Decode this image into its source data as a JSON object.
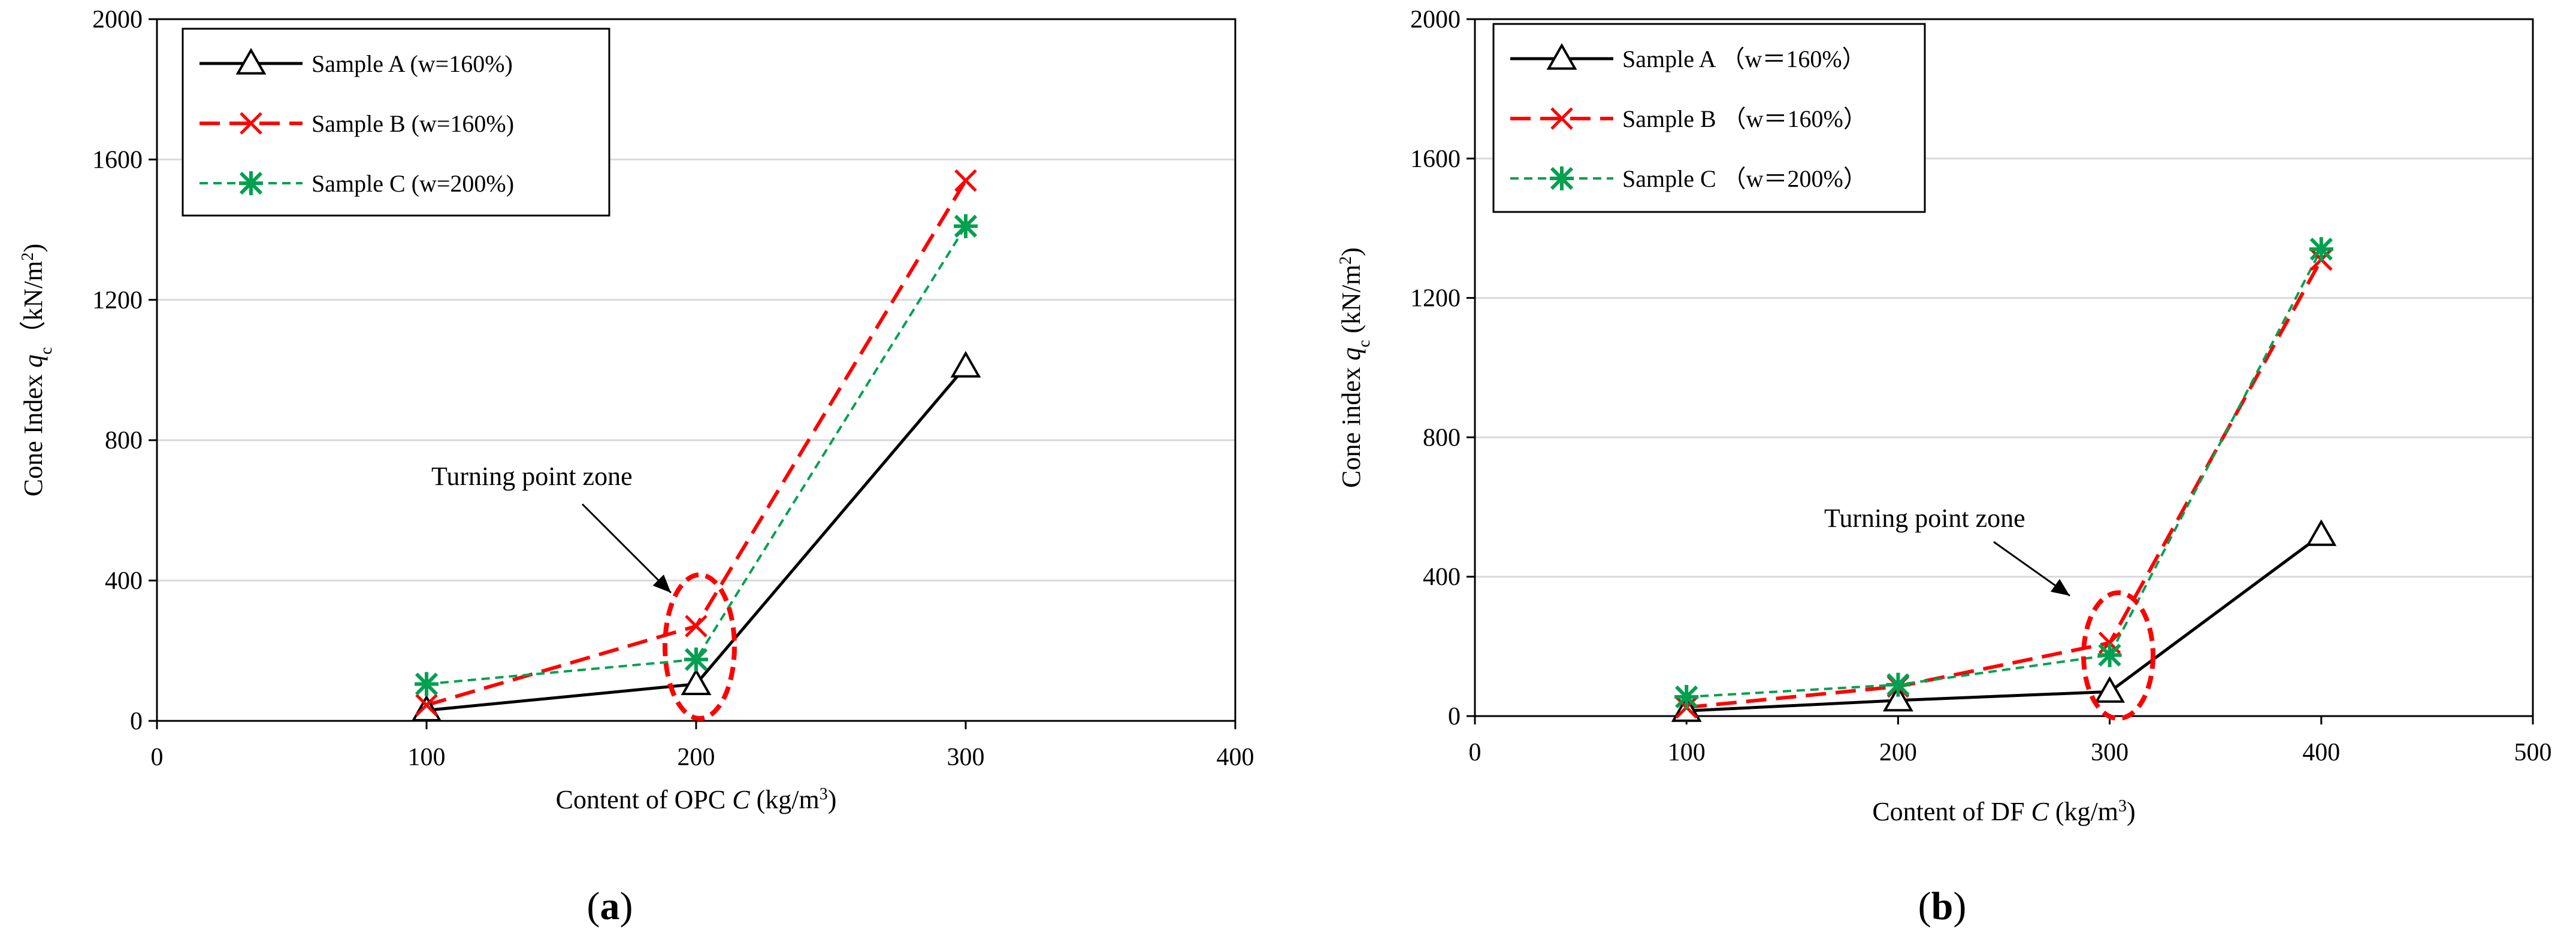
{
  "chart_data": [
    {
      "type": "line",
      "panel_label": "(a)",
      "title": "",
      "xlabel": "Content of OPC C (kg/m³)",
      "xlabel_parts": {
        "prefix": "Content of OPC ",
        "var": "C",
        "unit": " (kg/m",
        "sup": "3",
        "close": ")"
      },
      "ylabel_parts": {
        "prefix": "Cone Index ",
        "var": "q",
        "sub": "c",
        "unit": "（kN/m",
        "sup": "2",
        "close": ")"
      },
      "xlim": [
        0,
        400
      ],
      "ylim": [
        0,
        2000
      ],
      "xticks": [
        0,
        100,
        200,
        300,
        400
      ],
      "yticks": [
        0,
        400,
        800,
        1200,
        1600,
        2000
      ],
      "grid": true,
      "legend_position": "top-left",
      "series": [
        {
          "name": "Sample A (w=160%)",
          "x": [
            100,
            200,
            300
          ],
          "y": [
            30,
            105,
            1010
          ],
          "color": "#000000",
          "dash": "solid",
          "marker": "triangle"
        },
        {
          "name": "Sample B (w=160%)",
          "x": [
            100,
            200,
            300
          ],
          "y": [
            45,
            270,
            1540
          ],
          "color": "#ff0000",
          "dash": "long-dash",
          "marker": "x"
        },
        {
          "name": "Sample C (w=200%)",
          "x": [
            100,
            200,
            300
          ],
          "y": [
            105,
            175,
            1410
          ],
          "color": "#00a050",
          "dash": "short-dash",
          "marker": "star"
        }
      ],
      "annotation": {
        "text": "Turning point zone",
        "target_x": 200,
        "target_y": 200
      }
    },
    {
      "type": "line",
      "panel_label": "(b)",
      "title": "",
      "xlabel": "Content of DF C (kg/m³)",
      "xlabel_parts": {
        "prefix": "Content of DF ",
        "var": "C",
        "unit": " (kg/m",
        "sup": "3",
        "close": ")"
      },
      "ylabel_parts": {
        "prefix": "Cone index ",
        "var": "q",
        "sub": "c",
        "unit": " (kN/m",
        "sup": "2",
        "close": ")"
      },
      "xlim": [
        0,
        500
      ],
      "ylim": [
        0,
        2000
      ],
      "xticks": [
        0,
        100,
        200,
        300,
        400,
        500
      ],
      "yticks": [
        0,
        400,
        800,
        1200,
        1600,
        2000
      ],
      "grid": true,
      "legend_position": "top-left",
      "series": [
        {
          "name": "Sample  A （w＝160%）",
          "x": [
            100,
            200,
            300,
            400
          ],
          "y": [
            15,
            45,
            70,
            520
          ],
          "color": "#000000",
          "dash": "solid",
          "marker": "triangle"
        },
        {
          "name": "Sample  B （w＝160%）",
          "x": [
            100,
            200,
            300,
            400
          ],
          "y": [
            25,
            85,
            210,
            1310
          ],
          "color": "#ff0000",
          "dash": "long-dash",
          "marker": "x"
        },
        {
          "name": "Sample  C （w＝200%）",
          "x": [
            100,
            200,
            300,
            400
          ],
          "y": [
            55,
            90,
            175,
            1340
          ],
          "color": "#00a050",
          "dash": "short-dash",
          "marker": "star"
        }
      ],
      "annotation": {
        "text": "Turning point zone",
        "target_x": 300,
        "target_y": 200
      }
    }
  ]
}
